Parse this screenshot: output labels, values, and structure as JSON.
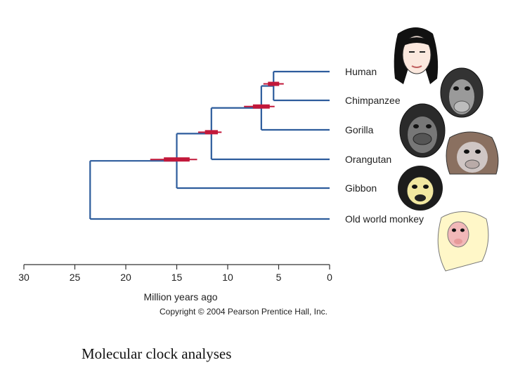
{
  "diagram": {
    "taxa": [
      {
        "name": "Human",
        "icon": "human-face-icon"
      },
      {
        "name": "Chimpanzee",
        "icon": "chimpanzee-face-icon"
      },
      {
        "name": "Gorilla",
        "icon": "gorilla-face-icon"
      },
      {
        "name": "Orangutan",
        "icon": "orangutan-face-icon"
      },
      {
        "name": "Gibbon",
        "icon": "gibbon-face-icon"
      },
      {
        "name": "Old world monkey",
        "icon": "macaque-face-icon"
      }
    ],
    "nodes": [
      {
        "joins": [
          "Human",
          "Chimpanzee"
        ],
        "age_mya": 5.5,
        "ci_mya": [
          4.5,
          6.5
        ]
      },
      {
        "joins": [
          "Human-Chimpanzee",
          "Gorilla"
        ],
        "age_mya": 6.7,
        "ci_mya": [
          5.4,
          8.4
        ]
      },
      {
        "joins": [
          "African apes",
          "Orangutan"
        ],
        "age_mya": 11.6,
        "ci_mya": [
          10.6,
          12.9
        ]
      },
      {
        "joins": [
          "Great apes",
          "Gibbon"
        ],
        "age_mya": 15.0,
        "ci_mya": [
          13.0,
          17.6
        ]
      },
      {
        "joins": [
          "Apes",
          "Old world monkey"
        ],
        "age_mya": 23.5
      }
    ],
    "axis": {
      "title": "Million years ago",
      "ticks": [
        30,
        25,
        20,
        15,
        10,
        5,
        0
      ],
      "range": [
        30,
        0
      ]
    },
    "copyright": "Copyright © 2004 Pearson Prentice Hall, Inc.",
    "colors": {
      "branch": "#2d5c9c",
      "interval": "#c2183a"
    }
  },
  "caption": "Molecular clock analyses"
}
